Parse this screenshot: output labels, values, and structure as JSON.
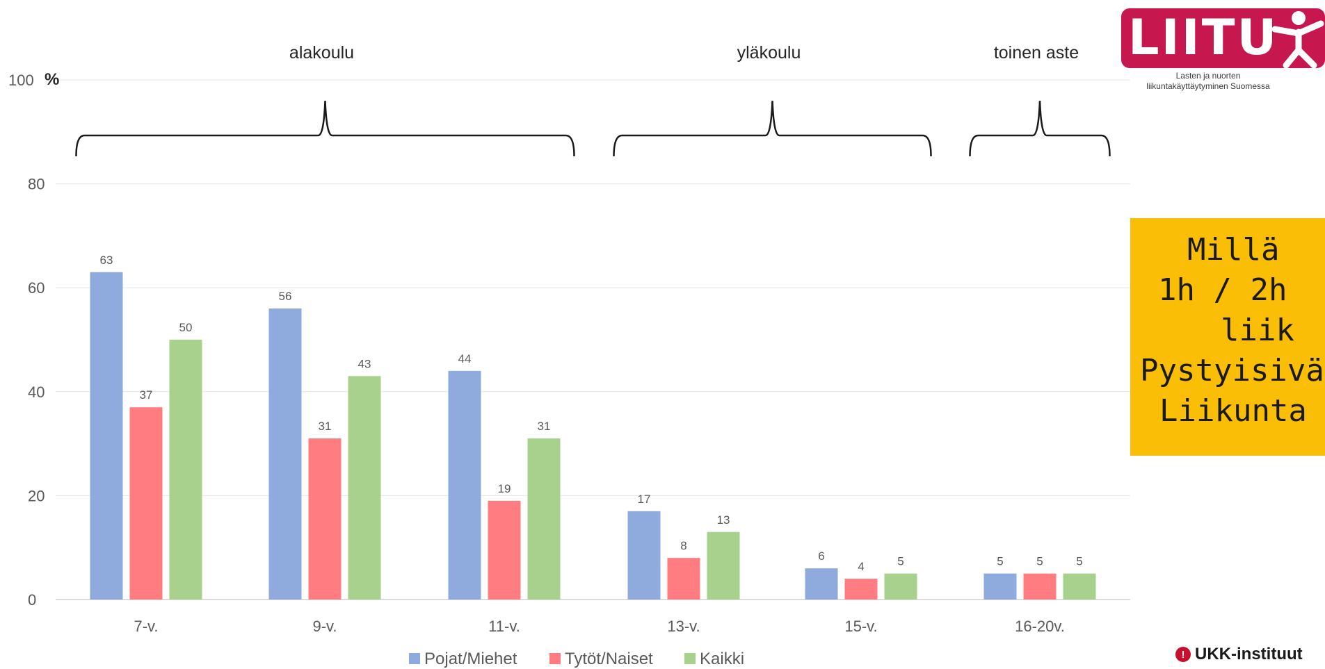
{
  "chart_data": {
    "type": "bar",
    "categories": [
      "7-v.",
      "9-v.",
      "11-v.",
      "13-v.",
      "15-v.",
      "16-20v."
    ],
    "series": [
      {
        "name": "Pojat/Miehet",
        "color": "#8faadc",
        "values": [
          63,
          56,
          44,
          17,
          6,
          5
        ]
      },
      {
        "name": "Tytöt/Naiset",
        "color": "#ff7c80",
        "values": [
          37,
          31,
          19,
          8,
          4,
          5
        ]
      },
      {
        "name": "Kaikki",
        "color": "#a9d18e",
        "values": [
          50,
          43,
          31,
          13,
          5,
          5
        ]
      }
    ],
    "ylim": [
      0,
      100
    ],
    "yticks": [
      0,
      20,
      40,
      60,
      80,
      100
    ],
    "yunit": "%",
    "grid": true,
    "legend": "bottom",
    "groups": [
      {
        "label": "alakoulu",
        "from": "7-v.",
        "to": "11-v."
      },
      {
        "label": "yläkoulu",
        "from": "13-v.",
        "to": "15-v."
      },
      {
        "label": "toinen aste",
        "from": "16-20v.",
        "to": "16-20v."
      }
    ]
  },
  "logo": {
    "name": "LIITU",
    "subtitle_line1": "Lasten ja nuorten",
    "subtitle_line2": "liikuntakäyttäytyminen Suomessa",
    "color": "#c7174f",
    "icon": "running-figure-icon"
  },
  "side_box": {
    "color": "#fbbe07",
    "lines": [
      "Millä",
      "1h / 2h",
      "liik",
      "Pystyisivä",
      "Liikunta"
    ]
  },
  "footer_logo": {
    "text": "UKK-instituut",
    "icon": "ukk-mark-icon"
  }
}
